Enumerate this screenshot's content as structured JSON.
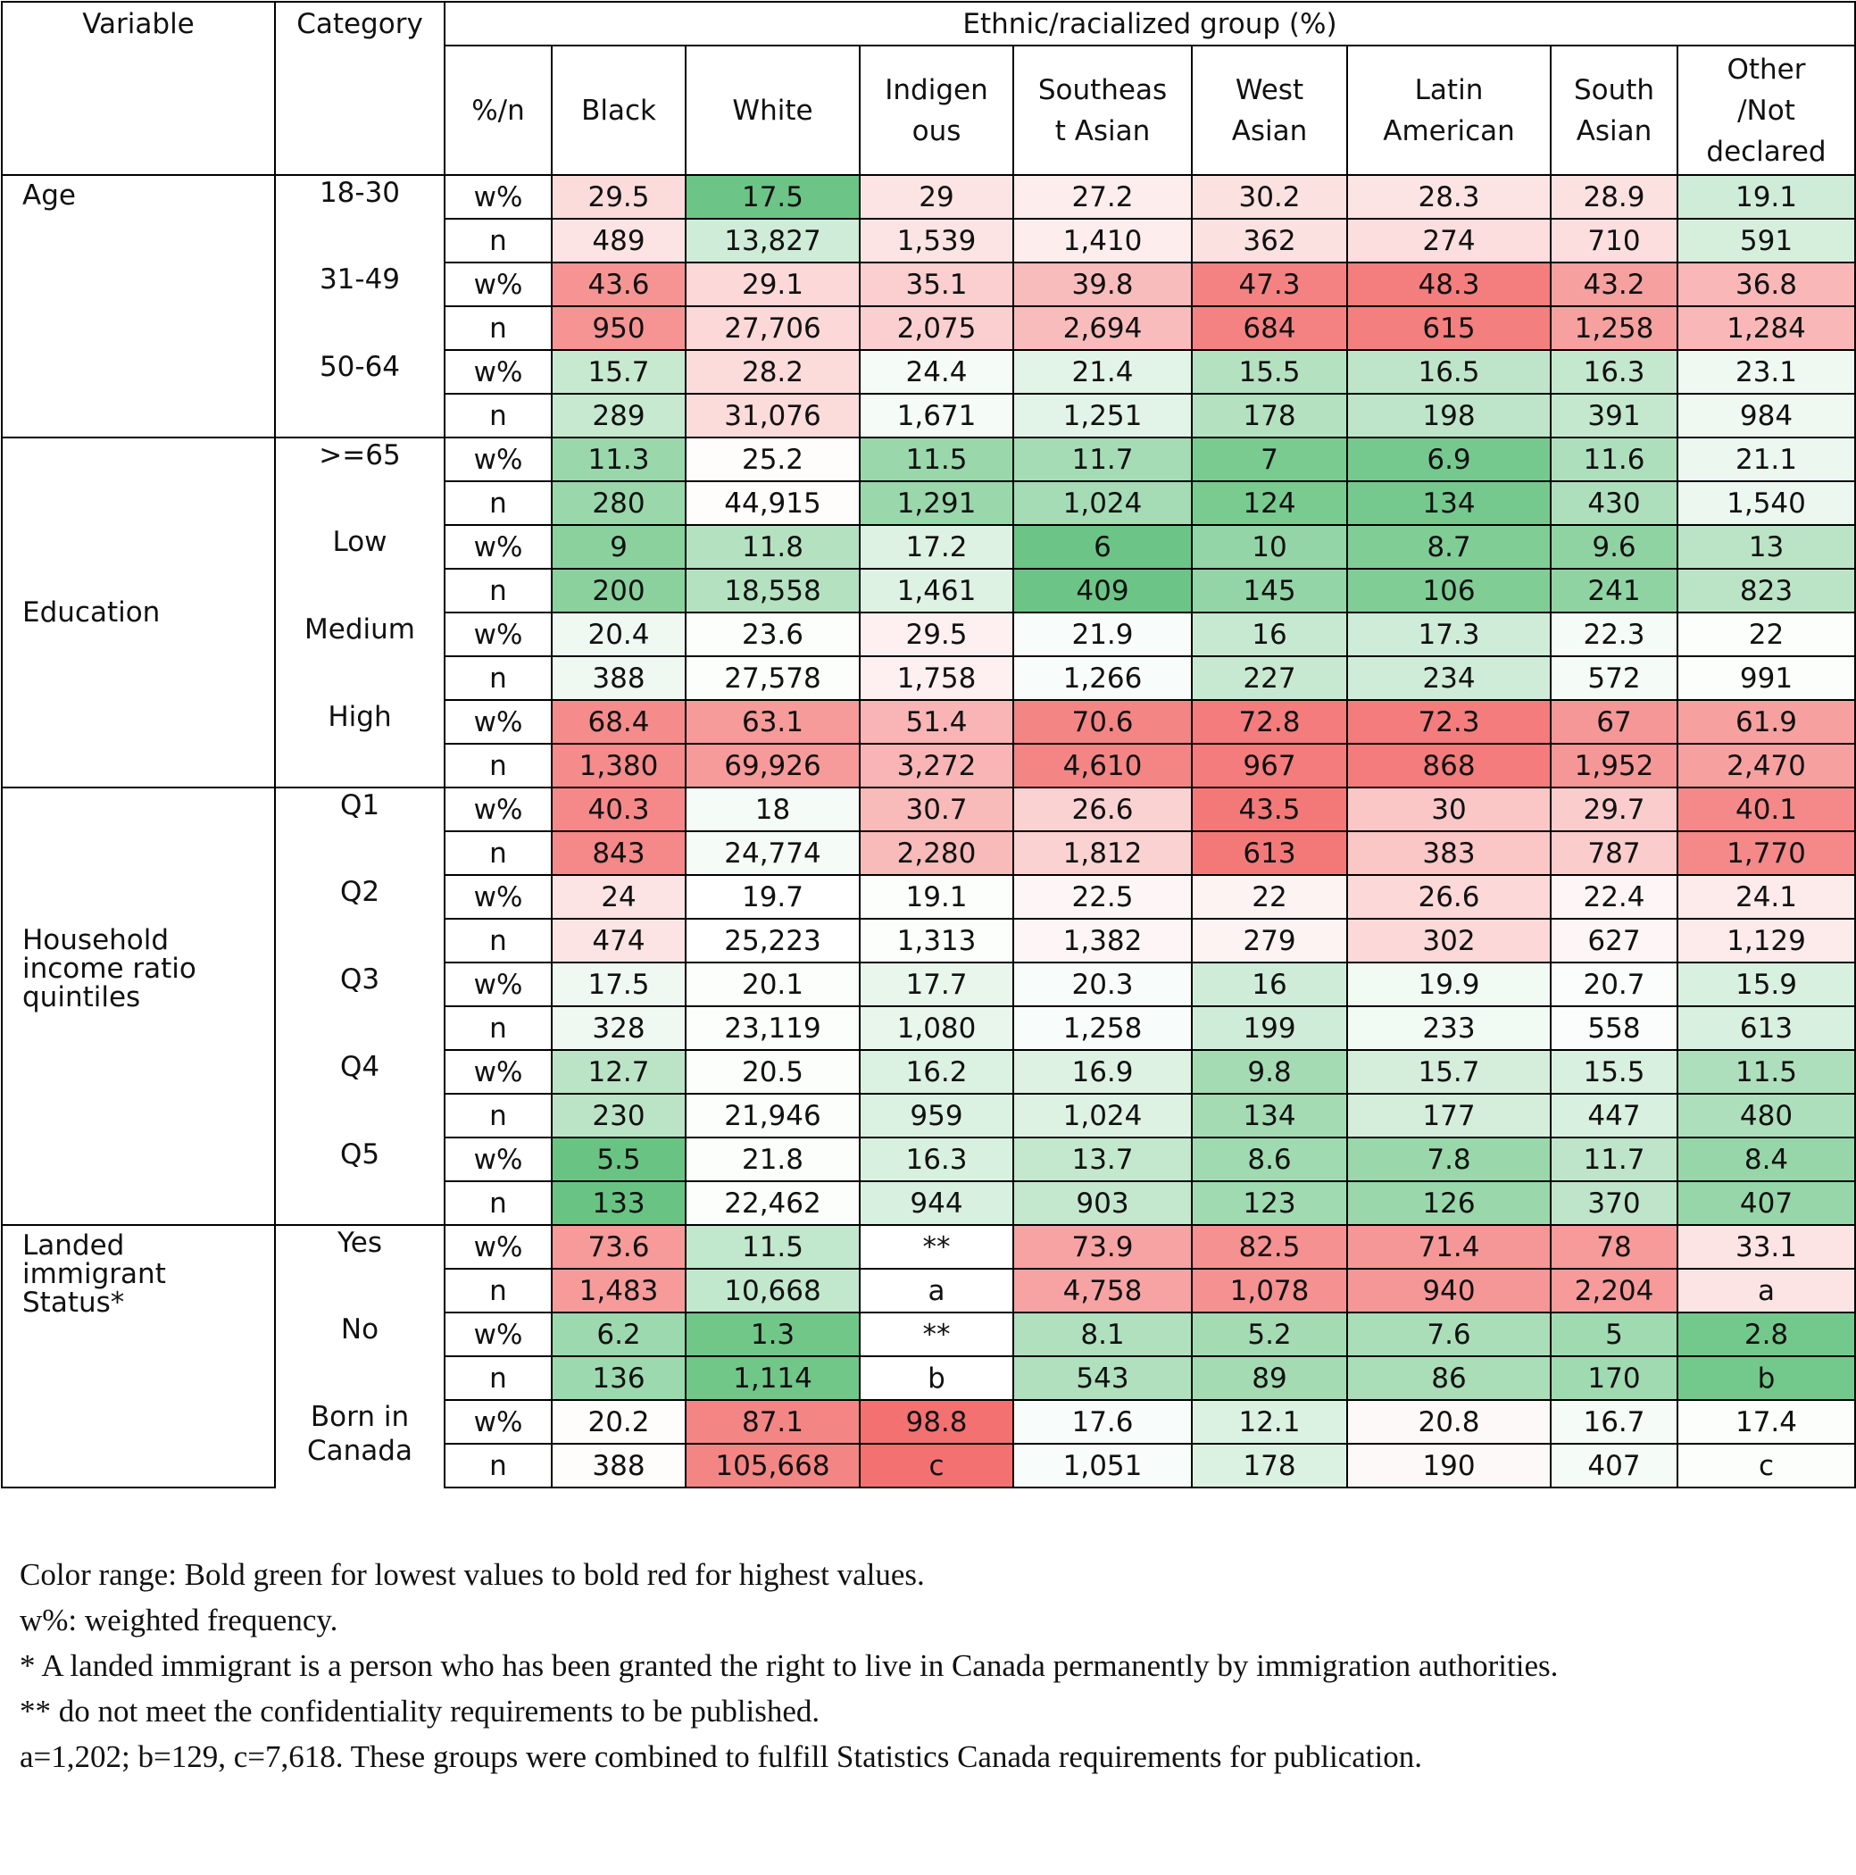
{
  "header": {
    "variable": "Variable",
    "category": "Category",
    "group_title": "Ethnic/racialized group (%)",
    "stat": "%/n",
    "groups": [
      [
        "Black"
      ],
      [
        "White"
      ],
      [
        "Indigen",
        "ous"
      ],
      [
        "Southeas",
        "t Asian"
      ],
      [
        "West",
        "Asian"
      ],
      [
        "Latin",
        "American"
      ],
      [
        "South",
        "Asian"
      ],
      [
        "Other",
        "/Not",
        "declared"
      ]
    ]
  },
  "color_scale": {
    "low": "#5cbf78",
    "mid": "#ffffff",
    "high": "#f26a6a"
  },
  "variables": [
    {
      "label": "Age",
      "rows": 6
    },
    {
      "label": "Education",
      "rows": 8
    },
    {
      "label": "Household income ratio quintiles",
      "rows": 10
    },
    {
      "label": "Landed immigrant Status*",
      "rows": 6
    }
  ],
  "categories": [
    {
      "label": "18-30",
      "rows": 2
    },
    {
      "label": "31-49",
      "rows": 2
    },
    {
      "label": "50-64",
      "rows": 2
    },
    {
      "label": ">=65",
      "rows": 2
    },
    {
      "label": "Low",
      "rows": 2
    },
    {
      "label": "Medium",
      "rows": 2
    },
    {
      "label": "High",
      "rows": 2
    },
    {
      "label": "Q1",
      "rows": 2
    },
    {
      "label": "Q2",
      "rows": 2
    },
    {
      "label": "Q3",
      "rows": 2
    },
    {
      "label": "Q4",
      "rows": 2
    },
    {
      "label": "Q5",
      "rows": 2
    },
    {
      "label": "Yes",
      "rows": 2
    },
    {
      "label": "No",
      "rows": 2
    },
    {
      "label": "Born in Canada",
      "rows": 2
    }
  ],
  "rows": [
    {
      "stat": "w%",
      "values": [
        "29.5",
        "17.5",
        "29",
        "27.2",
        "30.2",
        "28.3",
        "28.9",
        "19.1"
      ]
    },
    {
      "stat": "n",
      "values": [
        "489",
        "13,827",
        "1,539",
        "1,410",
        "362",
        "274",
        "710",
        "591"
      ]
    },
    {
      "stat": "w%",
      "values": [
        "43.6",
        "29.1",
        "35.1",
        "39.8",
        "47.3",
        "48.3",
        "43.2",
        "36.8"
      ]
    },
    {
      "stat": "n",
      "values": [
        "950",
        "27,706",
        "2,075",
        "2,694",
        "684",
        "615",
        "1,258",
        "1,284"
      ]
    },
    {
      "stat": "w%",
      "values": [
        "15.7",
        "28.2",
        "24.4",
        "21.4",
        "15.5",
        "16.5",
        "16.3",
        "23.1"
      ]
    },
    {
      "stat": "n",
      "values": [
        "289",
        "31,076",
        "1,671",
        "1,251",
        "178",
        "198",
        "391",
        "984"
      ]
    },
    {
      "stat": "w%",
      "values": [
        "11.3",
        "25.2",
        "11.5",
        "11.7",
        "7",
        "6.9",
        "11.6",
        "21.1"
      ]
    },
    {
      "stat": "n",
      "values": [
        "280",
        "44,915",
        "1,291",
        "1,024",
        "124",
        "134",
        "430",
        "1,540"
      ]
    },
    {
      "stat": "w%",
      "values": [
        "9",
        "11.8",
        "17.2",
        "6",
        "10",
        "8.7",
        "9.6",
        "13"
      ]
    },
    {
      "stat": "n",
      "values": [
        "200",
        "18,558",
        "1,461",
        "409",
        "145",
        "106",
        "241",
        "823"
      ]
    },
    {
      "stat": "w%",
      "values": [
        "20.4",
        "23.6",
        "29.5",
        "21.9",
        "16",
        "17.3",
        "22.3",
        "22"
      ]
    },
    {
      "stat": "n",
      "values": [
        "388",
        "27,578",
        "1,758",
        "1,266",
        "227",
        "234",
        "572",
        "991"
      ]
    },
    {
      "stat": "w%",
      "values": [
        "68.4",
        "63.1",
        "51.4",
        "70.6",
        "72.8",
        "72.3",
        "67",
        "61.9"
      ]
    },
    {
      "stat": "n",
      "values": [
        "1,380",
        "69,926",
        "3,272",
        "4,610",
        "967",
        "868",
        "1,952",
        "2,470"
      ]
    },
    {
      "stat": "w%",
      "values": [
        "40.3",
        "18",
        "30.7",
        "26.6",
        "43.5",
        "30",
        "29.7",
        "40.1"
      ]
    },
    {
      "stat": "n",
      "values": [
        "843",
        "24,774",
        "2,280",
        "1,812",
        "613",
        "383",
        "787",
        "1,770"
      ]
    },
    {
      "stat": "w%",
      "values": [
        "24",
        "19.7",
        "19.1",
        "22.5",
        "22",
        "26.6",
        "22.4",
        "24.1"
      ]
    },
    {
      "stat": "n",
      "values": [
        "474",
        "25,223",
        "1,313",
        "1,382",
        "279",
        "302",
        "627",
        "1,129"
      ]
    },
    {
      "stat": "w%",
      "values": [
        "17.5",
        "20.1",
        "17.7",
        "20.3",
        "16",
        "19.9",
        "20.7",
        "15.9"
      ]
    },
    {
      "stat": "n",
      "values": [
        "328",
        "23,119",
        "1,080",
        "1,258",
        "199",
        "233",
        "558",
        "613"
      ]
    },
    {
      "stat": "w%",
      "values": [
        "12.7",
        "20.5",
        "16.2",
        "16.9",
        "9.8",
        "15.7",
        "15.5",
        "11.5"
      ]
    },
    {
      "stat": "n",
      "values": [
        "230",
        "21,946",
        "959",
        "1,024",
        "134",
        "177",
        "447",
        "480"
      ]
    },
    {
      "stat": "w%",
      "values": [
        "5.5",
        "21.8",
        "16.3",
        "13.7",
        "8.6",
        "7.8",
        "11.7",
        "8.4"
      ]
    },
    {
      "stat": "n",
      "values": [
        "133",
        "22,462",
        "944",
        "903",
        "123",
        "126",
        "370",
        "407"
      ]
    },
    {
      "stat": "w%",
      "values": [
        "73.6",
        "11.5",
        "**",
        "73.9",
        "82.5",
        "71.4",
        "78",
        "33.1"
      ]
    },
    {
      "stat": "n",
      "values": [
        "1,483",
        "10,668",
        "a",
        "4,758",
        "1,078",
        "940",
        "2,204",
        "a"
      ]
    },
    {
      "stat": "w%",
      "values": [
        "6.2",
        "1.3",
        "**",
        "8.1",
        "5.2",
        "7.6",
        "5",
        "2.8"
      ]
    },
    {
      "stat": "n",
      "values": [
        "136",
        "1,114",
        "b",
        "543",
        "89",
        "86",
        "170",
        "b"
      ]
    },
    {
      "stat": "w%",
      "values": [
        "20.2",
        "87.1",
        "98.8",
        "17.6",
        "12.1",
        "20.8",
        "16.7",
        "17.4"
      ]
    },
    {
      "stat": "n",
      "values": [
        "388",
        "105,668",
        "c",
        "1,051",
        "178",
        "190",
        "407",
        "c"
      ]
    }
  ],
  "cell_levels": [
    [
      0.24,
      -0.9,
      0.18,
      0.12,
      0.2,
      0.18,
      0.2,
      -0.3
    ],
    [
      0.18,
      -0.3,
      0.18,
      0.12,
      0.2,
      0.22,
      0.22,
      -0.25
    ],
    [
      0.72,
      0.26,
      0.32,
      0.45,
      0.84,
      0.87,
      0.64,
      0.48
    ],
    [
      0.72,
      0.26,
      0.32,
      0.45,
      0.84,
      0.86,
      0.64,
      0.48
    ],
    [
      -0.35,
      0.24,
      -0.06,
      -0.18,
      -0.46,
      -0.4,
      -0.36,
      -0.1
    ],
    [
      -0.35,
      0.24,
      -0.06,
      -0.18,
      -0.46,
      -0.4,
      -0.36,
      -0.1
    ],
    [
      -0.62,
      0.02,
      -0.62,
      -0.55,
      -0.82,
      -0.84,
      -0.5,
      -0.12
    ],
    [
      -0.62,
      0.02,
      -0.62,
      -0.55,
      -0.82,
      -0.84,
      -0.5,
      -0.12
    ],
    [
      -0.72,
      -0.46,
      -0.2,
      -0.9,
      -0.66,
      -0.78,
      -0.68,
      -0.42
    ],
    [
      -0.72,
      -0.46,
      -0.2,
      -0.9,
      -0.66,
      -0.78,
      -0.68,
      -0.42
    ],
    [
      -0.1,
      -0.02,
      0.1,
      -0.04,
      -0.34,
      -0.3,
      -0.06,
      -0.02
    ],
    [
      -0.1,
      -0.02,
      0.1,
      -0.04,
      -0.34,
      -0.3,
      -0.06,
      -0.02
    ],
    [
      0.78,
      0.68,
      0.5,
      0.82,
      0.88,
      0.88,
      0.7,
      0.64
    ],
    [
      0.78,
      0.68,
      0.5,
      0.82,
      0.88,
      0.88,
      0.7,
      0.64
    ],
    [
      0.8,
      -0.06,
      0.46,
      0.3,
      0.9,
      0.38,
      0.34,
      0.8
    ],
    [
      0.8,
      -0.06,
      0.46,
      0.3,
      0.9,
      0.38,
      0.34,
      0.8
    ],
    [
      0.18,
      0.0,
      -0.02,
      0.06,
      0.08,
      0.26,
      0.06,
      0.14
    ],
    [
      0.18,
      0.0,
      -0.02,
      0.06,
      0.08,
      0.26,
      0.06,
      0.14
    ],
    [
      -0.1,
      -0.02,
      -0.14,
      -0.04,
      -0.3,
      -0.08,
      -0.03,
      -0.24
    ],
    [
      -0.1,
      -0.02,
      -0.14,
      -0.04,
      -0.3,
      -0.08,
      -0.03,
      -0.24
    ],
    [
      -0.42,
      -0.02,
      -0.22,
      -0.2,
      -0.56,
      -0.26,
      -0.24,
      -0.5
    ],
    [
      -0.42,
      -0.02,
      -0.22,
      -0.2,
      -0.56,
      -0.26,
      -0.24,
      -0.5
    ],
    [
      -0.92,
      -0.02,
      -0.24,
      -0.36,
      -0.58,
      -0.62,
      -0.4,
      -0.64
    ],
    [
      -0.92,
      -0.02,
      -0.24,
      -0.36,
      -0.58,
      -0.62,
      -0.4,
      -0.64
    ],
    [
      0.68,
      -0.38,
      0.0,
      0.62,
      0.74,
      0.7,
      0.68,
      0.18
    ],
    [
      0.68,
      -0.38,
      0.0,
      0.62,
      0.74,
      0.7,
      0.68,
      0.18
    ],
    [
      -0.6,
      -0.88,
      0.0,
      -0.48,
      -0.56,
      -0.52,
      -0.58,
      -0.86
    ],
    [
      -0.6,
      -0.88,
      0.0,
      -0.48,
      -0.56,
      -0.52,
      -0.58,
      -0.86
    ],
    [
      0.02,
      0.82,
      0.95,
      -0.04,
      -0.22,
      0.04,
      -0.06,
      -0.02
    ],
    [
      0.02,
      0.82,
      0.95,
      -0.04,
      -0.22,
      0.04,
      -0.06,
      -0.02
    ]
  ],
  "notes": [
    "Color range: Bold green for lowest values to bold red for highest values.",
    "w%: weighted frequency.",
    "* A landed immigrant is a person who has been granted the right to live in Canada permanently by immigration authorities.",
    "** do not meet the confidentiality requirements to be published.",
    "a=1,202; b=129, c=7,618. These groups were combined to fulfill Statistics Canada requirements for publication."
  ]
}
